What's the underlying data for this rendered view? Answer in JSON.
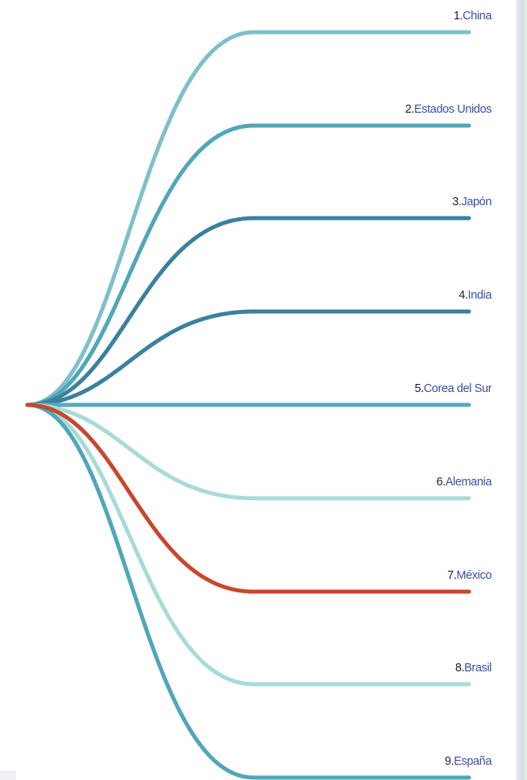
{
  "colors": {
    "teal_light": "#7fbfca",
    "teal_mid": "#4fa7b8",
    "teal_dark": "#3a819e",
    "mint": "#a8dbd6",
    "highlight": "#c8482d",
    "number_text": "#1f1f2a",
    "name_text": "#3b4fa8"
  },
  "items": [
    {
      "rank": "1.",
      "name": "China",
      "color": "#7fbfca"
    },
    {
      "rank": "2.",
      "name": "Estados Unidos",
      "color": "#4fa7b8"
    },
    {
      "rank": "3.",
      "name": "Japón",
      "color": "#3a819e"
    },
    {
      "rank": "4.",
      "name": "India",
      "color": "#3a819e"
    },
    {
      "rank": "5.",
      "name": "Corea del Sur",
      "color": "#5aa9ba"
    },
    {
      "rank": "6.",
      "name": "Alemania",
      "color": "#a8dbd6"
    },
    {
      "rank": "7.",
      "name": "México",
      "color": "#c8482d"
    },
    {
      "rank": "8.",
      "name": "Brasil",
      "color": "#a8dbd6"
    },
    {
      "rank": "9.",
      "name": "España",
      "color": "#4fa7b8"
    }
  ]
}
